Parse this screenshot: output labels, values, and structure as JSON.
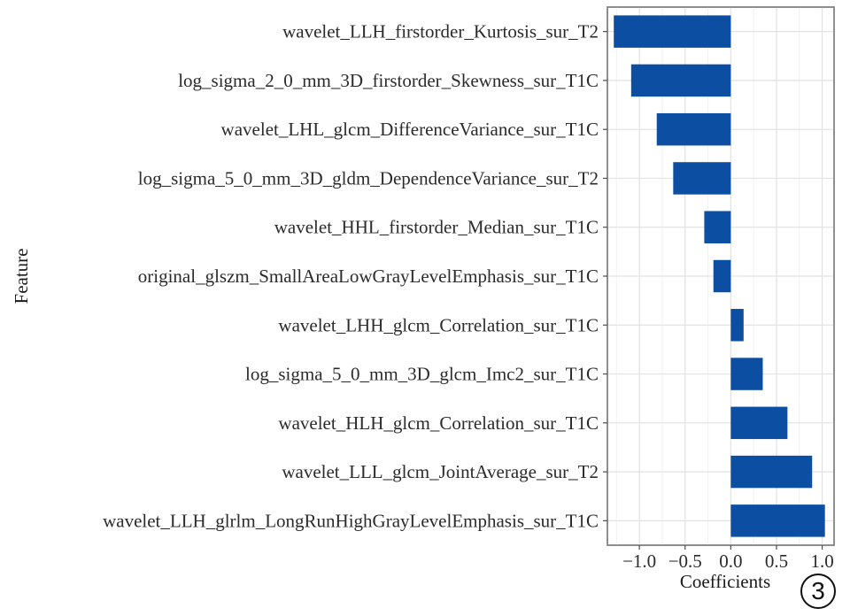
{
  "chart_data": {
    "type": "bar",
    "orientation": "horizontal",
    "xlabel": "Coefficients",
    "ylabel": "Feature",
    "xlim": [
      -1.35,
      1.13
    ],
    "xticks": [
      -1.0,
      -0.5,
      0.0,
      0.5,
      1.0
    ],
    "xtick_labels": [
      "−1.0",
      "−0.5",
      "0.0",
      "0.5",
      "1.0"
    ],
    "grid": true,
    "bar_color": "#0b4ea2",
    "categories": [
      "wavelet_LLH_firstorder_Kurtosis_sur_T2",
      "log_sigma_2_0_mm_3D_firstorder_Skewness_sur_T1C",
      "wavelet_LHL_glcm_DifferenceVariance_sur_T1C",
      "log_sigma_5_0_mm_3D_gldm_DependenceVariance_sur_T2",
      "wavelet_HHL_firstorder_Median_sur_T1C",
      "original_glszm_SmallAreaLowGrayLevelEmphasis_sur_T1C",
      "wavelet_LHH_glcm_Correlation_sur_T1C",
      "log_sigma_5_0_mm_3D_glcm_Imc2_sur_T1C",
      "wavelet_HLH_glcm_Correlation_sur_T1C",
      "wavelet_LLL_glcm_JointAverage_sur_T2",
      "wavelet_LLH_glrlm_LongRunHighGrayLevelEmphasis_sur_T1C"
    ],
    "values": [
      -1.28,
      -1.09,
      -0.81,
      -0.63,
      -0.29,
      -0.19,
      0.14,
      0.35,
      0.62,
      0.89,
      1.03
    ]
  },
  "badge": "3"
}
